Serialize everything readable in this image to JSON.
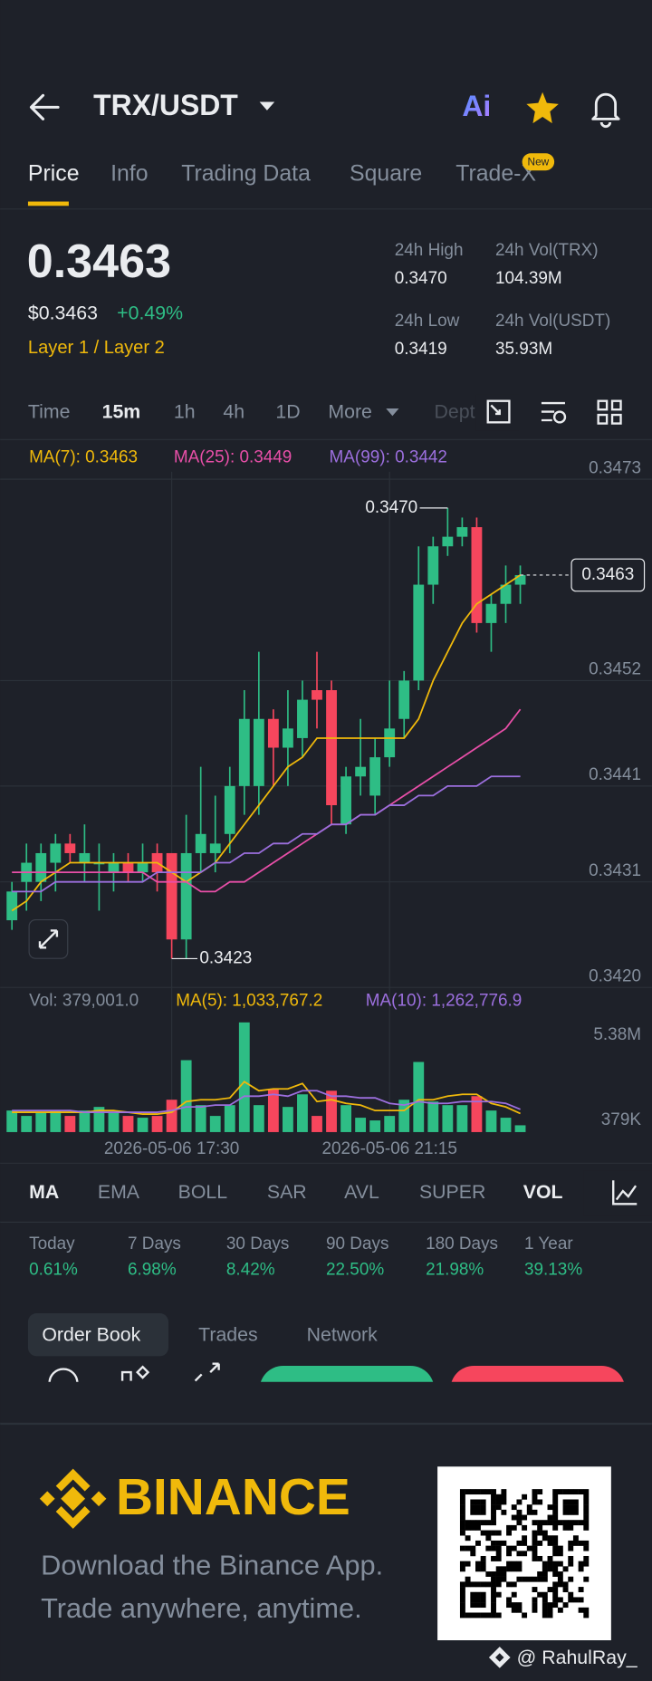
{
  "header": {
    "pair": "TRX/USDT",
    "ai_label": "Ai"
  },
  "tabs": [
    "Price",
    "Info",
    "Trading Data",
    "Square",
    "Trade-X"
  ],
  "new_badge": "New",
  "ticker": {
    "last": "0.3463",
    "usd": "$0.3463",
    "change": "+0.49%",
    "tag": "Layer 1 / Layer 2",
    "stats": [
      {
        "label": "24h High",
        "value": "0.3470"
      },
      {
        "label": "24h Vol(TRX)",
        "value": "104.39M"
      },
      {
        "label": "24h Low",
        "value": "0.3419"
      },
      {
        "label": "24h Vol(USDT)",
        "value": "35.93M"
      }
    ]
  },
  "intervals": [
    "Time",
    "15m",
    "1h",
    "4h",
    "1D",
    "More",
    "Depth"
  ],
  "chart_data": [
    {
      "type": "candlestick",
      "categories": [
        null,
        null,
        null,
        null,
        null,
        null,
        null,
        null,
        null,
        null,
        null,
        "2026-05-06 17:30",
        null,
        null,
        null,
        null,
        null,
        null,
        null,
        null,
        null,
        null,
        null,
        null,
        null,
        null,
        "2026-05-06 21:15",
        null,
        null,
        null,
        null,
        null,
        null,
        null,
        null,
        null
      ],
      "open": [
        0.3427,
        0.3431,
        0.3431,
        0.3433,
        0.3435,
        0.3433,
        0.3433,
        0.3432,
        0.3433,
        0.3432,
        0.3434,
        0.3434,
        0.3425,
        0.3434,
        0.3434,
        0.3436,
        0.3441,
        0.3441,
        0.3448,
        0.3445,
        0.3446,
        0.3451,
        0.3451,
        0.3437,
        0.3442,
        0.344,
        0.3444,
        0.3448,
        0.3452,
        0.3462,
        0.3466,
        0.3467,
        0.3468,
        0.3458,
        0.346,
        0.3462
      ],
      "high": [
        0.3431,
        0.3435,
        0.3435,
        0.3436,
        0.3436,
        0.3437,
        0.3435,
        0.3434,
        0.3434,
        0.3435,
        0.3435,
        0.3434,
        0.3438,
        0.3443,
        0.344,
        0.3443,
        0.3451,
        0.3455,
        0.3449,
        0.3451,
        0.3452,
        0.3455,
        0.3452,
        0.3443,
        0.3448,
        0.3446,
        0.3452,
        0.3453,
        0.3466,
        0.3467,
        0.347,
        0.3469,
        0.3469,
        0.3461,
        0.3464,
        0.3464
      ],
      "low": [
        0.3426,
        0.3428,
        0.3429,
        0.343,
        0.3433,
        0.3431,
        0.3428,
        0.343,
        0.3431,
        0.3431,
        0.343,
        0.3423,
        0.3423,
        0.3432,
        0.3432,
        0.3434,
        0.3438,
        0.3438,
        0.3441,
        0.3441,
        0.3444,
        0.3447,
        0.3437,
        0.3436,
        0.344,
        0.3438,
        0.3443,
        0.3446,
        0.3451,
        0.346,
        0.3465,
        0.3466,
        0.3457,
        0.3455,
        0.3458,
        0.346
      ],
      "close": [
        0.343,
        0.3433,
        0.3434,
        0.3435,
        0.3434,
        0.3434,
        0.3433,
        0.3433,
        0.3432,
        0.3433,
        0.3432,
        0.3425,
        0.3434,
        0.3436,
        0.3435,
        0.3441,
        0.3448,
        0.3448,
        0.3445,
        0.3447,
        0.345,
        0.345,
        0.3439,
        0.3442,
        0.3443,
        0.3444,
        0.3447,
        0.3452,
        0.3462,
        0.3466,
        0.3467,
        0.3468,
        0.3458,
        0.346,
        0.3462,
        0.3463
      ],
      "up_color": "#2ebd85",
      "down_color": "#f6465d",
      "series": [
        {
          "name": "MA(7): 0.3463",
          "color": "#f0b90b",
          "values": [
            0.3428,
            0.3429,
            0.3431,
            0.3432,
            0.3433,
            0.3433,
            0.3433,
            0.3433,
            0.3433,
            0.3433,
            0.3433,
            0.3432,
            0.3431,
            0.3432,
            0.3433,
            0.3435,
            0.3437,
            0.3439,
            0.3441,
            0.3443,
            0.3444,
            0.3446,
            0.3446,
            0.3446,
            0.3446,
            0.3446,
            0.3446,
            0.3446,
            0.3448,
            0.3452,
            0.3455,
            0.3458,
            0.346,
            0.3461,
            0.3462,
            0.3463
          ]
        },
        {
          "name": "MA(25): 0.3449",
          "color": "#e84fa8",
          "values": [
            0.3432,
            0.3432,
            0.3432,
            0.3432,
            0.3432,
            0.3432,
            0.3432,
            0.3432,
            0.3432,
            0.3432,
            0.3431,
            0.3431,
            0.3431,
            0.343,
            0.343,
            0.3431,
            0.3431,
            0.3432,
            0.3433,
            0.3434,
            0.3435,
            0.3436,
            0.3437,
            0.3437,
            0.3438,
            0.3438,
            0.3439,
            0.344,
            0.3441,
            0.3442,
            0.3443,
            0.3444,
            0.3445,
            0.3446,
            0.3447,
            0.3449
          ]
        },
        {
          "name": "MA(99): 0.3442",
          "color": "#9c6fde",
          "values": [
            0.343,
            0.343,
            0.343,
            0.3431,
            0.3431,
            0.3431,
            0.3431,
            0.3431,
            0.3431,
            0.3431,
            0.3432,
            0.3432,
            0.3432,
            0.3432,
            0.3433,
            0.3433,
            0.3434,
            0.3434,
            0.3435,
            0.3435,
            0.3436,
            0.3436,
            0.3437,
            0.3437,
            0.3438,
            0.3438,
            0.3439,
            0.3439,
            0.344,
            0.344,
            0.3441,
            0.3441,
            0.3441,
            0.3442,
            0.3442,
            0.3442
          ]
        }
      ],
      "ylim": [
        0.342,
        0.3473
      ],
      "yticks": [
        0.3473,
        0.3452,
        0.3441,
        0.3431,
        {
          "value": 0.342,
          "label": "0.3420"
        }
      ],
      "grid": true,
      "last_price": 0.3463,
      "max_label": {
        "value": 0.347,
        "label": "0.3470"
      },
      "min_label": 0.3423
    },
    {
      "type": "bar",
      "legend": "Vol: 379,001.0",
      "values": [
        1200000,
        900000,
        1100000,
        1200000,
        900000,
        1200000,
        1400000,
        1100000,
        900000,
        800000,
        900000,
        1800000,
        4000000,
        1500000,
        900000,
        1500000,
        6100000,
        1500000,
        2400000,
        1400000,
        2100000,
        900000,
        2300000,
        1500000,
        800000,
        650000,
        900000,
        1800000,
        3900000,
        1700000,
        1500000,
        1500000,
        2000000,
        1200000,
        800000,
        379001
      ],
      "series": [
        {
          "name": "MA(5): 1,033,767.2",
          "color": "#f0b90b",
          "values": [
            1100000,
            1100000,
            1100000,
            1100000,
            1100000,
            1100000,
            1200000,
            1200000,
            1100000,
            1000000,
            1000000,
            1100000,
            1700000,
            1800000,
            1800000,
            1900000,
            2800000,
            2300000,
            2400000,
            2400000,
            2700000,
            1700000,
            1800000,
            1600000,
            1500000,
            1200000,
            1200000,
            1200000,
            1800000,
            1800000,
            2000000,
            2100000,
            2100000,
            1600000,
            1400000,
            1033767.2
          ]
        },
        {
          "name": "MA(10): 1,262,776.9",
          "color": "#9c6fde",
          "values": [
            1200000,
            1200000,
            1200000,
            1200000,
            1200000,
            1100000,
            1100000,
            1100000,
            1100000,
            1100000,
            1100000,
            1200000,
            1400000,
            1400000,
            1500000,
            1500000,
            2000000,
            2000000,
            2100000,
            2000000,
            2300000,
            2300000,
            2000000,
            2000000,
            1900000,
            1900000,
            1600000,
            1500000,
            1700000,
            1600000,
            1600000,
            1700000,
            1700000,
            1700000,
            1600000,
            1262776.9
          ]
        }
      ],
      "ylim": [
        0,
        6200000
      ],
      "yticks": [
        {
          "value": 5380000,
          "label": "5.38M"
        },
        {
          "value": 379000,
          "label": "379K"
        }
      ],
      "grid": false
    }
  ],
  "indicators": [
    "MA",
    "EMA",
    "BOLL",
    "SAR",
    "AVL",
    "SUPER",
    "VOL"
  ],
  "performance": [
    {
      "label": "Today",
      "value": "0.61%"
    },
    {
      "label": "7 Days",
      "value": "6.98%"
    },
    {
      "label": "30 Days",
      "value": "8.42%"
    },
    {
      "label": "90 Days",
      "value": "22.50%"
    },
    {
      "label": "180 Days",
      "value": "21.98%"
    },
    {
      "label": "1 Year",
      "value": "39.13%"
    }
  ],
  "book_tabs": [
    "Order Book",
    "Trades",
    "Network"
  ],
  "banner": {
    "brand": "BINANCE",
    "line1": "Download the Binance App.",
    "line2": "Trade anywhere, anytime."
  },
  "watermark": "@ RahulRay_"
}
